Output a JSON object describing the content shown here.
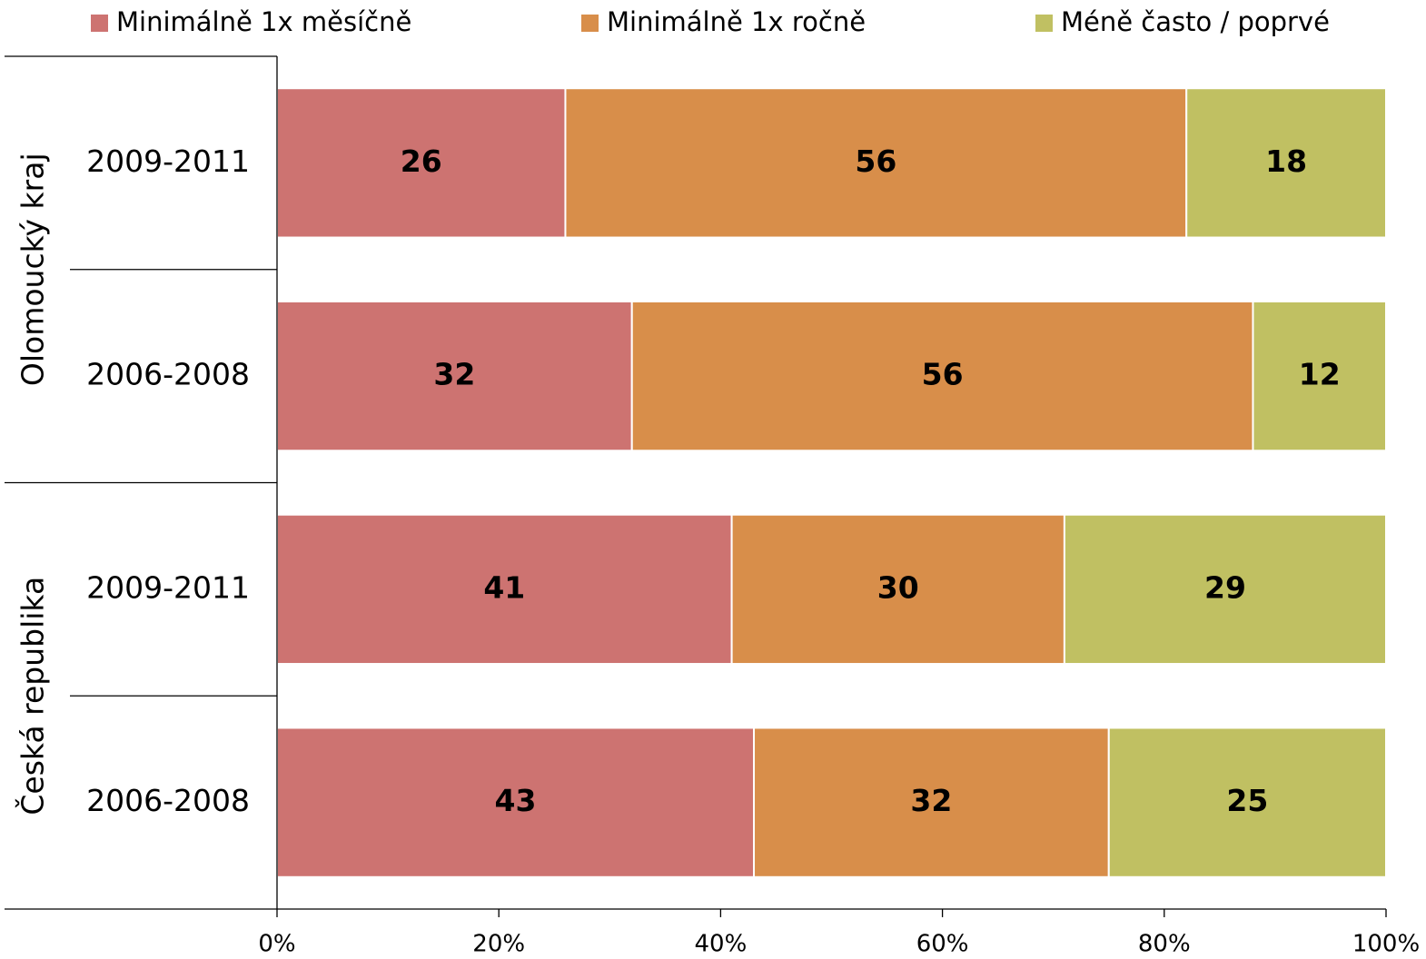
{
  "chart_data": {
    "type": "stacked-barh",
    "groups": [
      {
        "name": "Olomoucký kraj",
        "categories": [
          "2009-2011",
          "2006-2008"
        ]
      },
      {
        "name": "Česká republika",
        "categories": [
          "2009-2011",
          "2006-2008"
        ]
      }
    ],
    "series": [
      {
        "name": "Minimálně 1x měsíčně",
        "color": "#cd7371",
        "values": [
          26,
          32,
          41,
          43
        ]
      },
      {
        "name": "Minimálně 1x ročně",
        "color": "#d88e4a",
        "values": [
          56,
          56,
          30,
          32
        ]
      },
      {
        "name": "Méně často / poprvé",
        "color": "#c0c062",
        "values": [
          18,
          12,
          29,
          25
        ]
      }
    ],
    "xlim": [
      0,
      100
    ],
    "xticks": [
      {
        "value": 0,
        "label": "0%"
      },
      {
        "value": 20,
        "label": "20%"
      },
      {
        "value": 40,
        "label": "40%"
      },
      {
        "value": 60,
        "label": "60%"
      },
      {
        "value": 80,
        "label": "80%"
      },
      {
        "value": 100,
        "label": "100%"
      }
    ],
    "legend": "top"
  }
}
